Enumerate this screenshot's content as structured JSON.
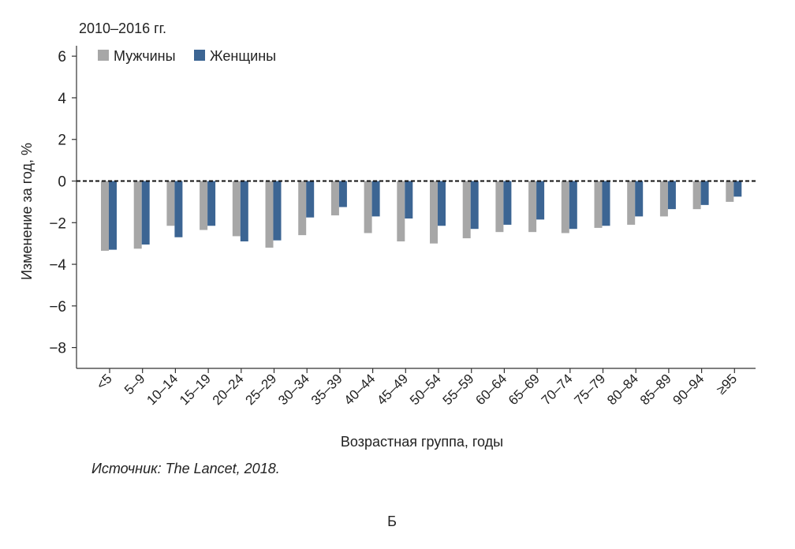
{
  "period_label": "2010–2016 гг.",
  "source_text": "Источник: The Lancet, 2018.",
  "panel_letter": "Б",
  "colors": {
    "men": "#a7a7a7",
    "women": "#3c6593"
  },
  "chart_data": {
    "type": "bar",
    "xlabel": "Возрастная группа, годы",
    "ylabel": "Изменение за год, %",
    "ylim": [
      -9,
      6.5
    ],
    "yticks": [
      "6",
      "4",
      "2",
      "0",
      "−2",
      "−4",
      "−6",
      "−8"
    ],
    "ytick_values": [
      6,
      4,
      2,
      0,
      -2,
      -4,
      -6,
      -8
    ],
    "categories": [
      "<5",
      "5–9",
      "10–14",
      "15–19",
      "20–24",
      "25–29",
      "30–34",
      "35–39",
      "40–44",
      "45–49",
      "50–54",
      "55–59",
      "60–64",
      "65–69",
      "70–74",
      "75–79",
      "80–84",
      "85–89",
      "90–94",
      "≥95"
    ],
    "series": [
      {
        "name": "Мужчины",
        "values": [
          -3.35,
          -3.25,
          -2.15,
          -2.35,
          -2.65,
          -3.2,
          -2.6,
          -1.65,
          -2.5,
          -2.9,
          -3.0,
          -2.75,
          -2.45,
          -2.45,
          -2.5,
          -2.25,
          -2.1,
          -1.7,
          -1.35,
          -1.0
        ]
      },
      {
        "name": "Женщины",
        "values": [
          -3.3,
          -3.05,
          -2.7,
          -2.15,
          -2.9,
          -2.85,
          -1.75,
          -1.25,
          -1.7,
          -1.8,
          -2.15,
          -2.3,
          -2.1,
          -1.85,
          -2.3,
          -2.15,
          -1.7,
          -1.35,
          -1.15,
          -0.75
        ]
      }
    ],
    "zero_line": "dashed",
    "grid": false,
    "legend_position": "top-left"
  }
}
